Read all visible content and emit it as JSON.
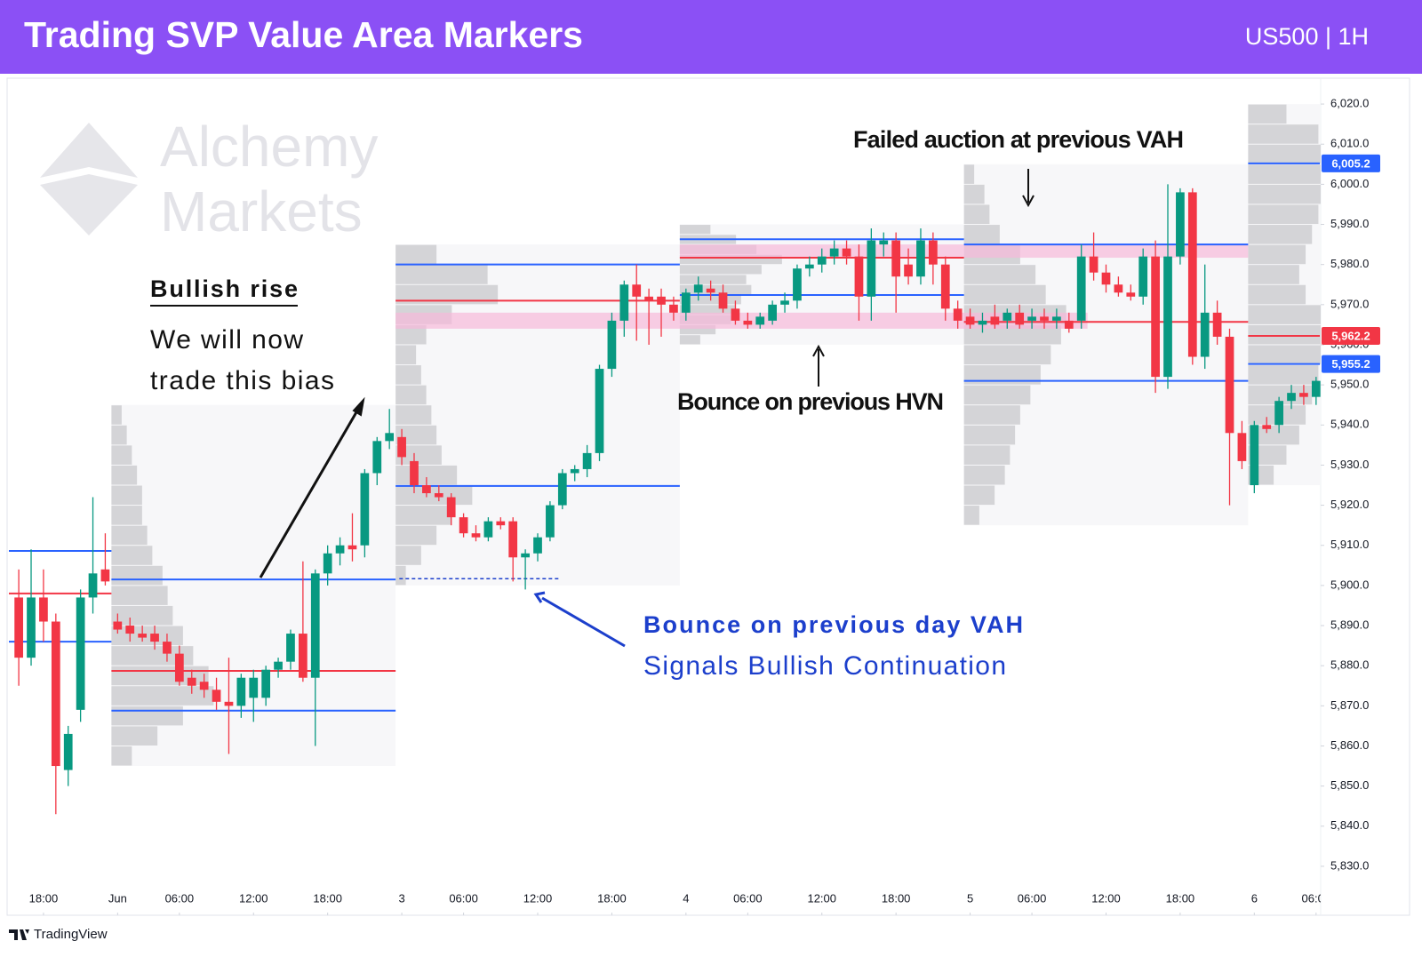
{
  "header": {
    "title": "Trading SVP Value Area Markers",
    "symbol": "US500 | 1H"
  },
  "watermark": [
    "Alchemy",
    "Markets"
  ],
  "footer": "TradingView",
  "chart_data": {
    "type": "candlestick",
    "up_color": "#089981",
    "down_color": "#f23645",
    "vah_color": "#2962ff",
    "poc_color": "#f23645",
    "val_color": "#2962ff",
    "zone_color": "#f7b9da",
    "grid": false,
    "xlim": [
      -2.8,
      103.3
    ],
    "ylim": [
      5817.8,
      6026
    ],
    "xticks": [
      {
        "value": 0,
        "label": "18:00"
      },
      {
        "value": 6,
        "label": "Jun"
      },
      {
        "value": 11,
        "label": "06:00"
      },
      {
        "value": 17,
        "label": "12:00"
      },
      {
        "value": 23,
        "label": "18:00"
      },
      {
        "value": 29,
        "label": "3"
      },
      {
        "value": 34,
        "label": "06:00"
      },
      {
        "value": 40,
        "label": "12:00"
      },
      {
        "value": 46,
        "label": "18:00"
      },
      {
        "value": 52,
        "label": "4"
      },
      {
        "value": 57,
        "label": "06:00"
      },
      {
        "value": 63,
        "label": "12:00"
      },
      {
        "value": 69,
        "label": "18:00"
      },
      {
        "value": 75,
        "label": "5"
      },
      {
        "value": 80,
        "label": "06:00"
      },
      {
        "value": 86,
        "label": "12:00"
      },
      {
        "value": 92,
        "label": "18:00"
      },
      {
        "value": 98,
        "label": "6"
      },
      {
        "value": 103,
        "label": "06:00"
      }
    ],
    "yticks": [
      {
        "value": 6020,
        "label": "6,020.0"
      },
      {
        "value": 6010,
        "label": "6,010.0"
      },
      {
        "value": 6000,
        "label": "6,000.0"
      },
      {
        "value": 5990,
        "label": "5,990.0"
      },
      {
        "value": 5980,
        "label": "5,980.0"
      },
      {
        "value": 5970,
        "label": "5,970.0"
      },
      {
        "value": 5960,
        "label": "5,960.0"
      },
      {
        "value": 5950,
        "label": "5,950.0"
      },
      {
        "value": 5940,
        "label": "5,940.0"
      },
      {
        "value": 5930,
        "label": "5,930.0"
      },
      {
        "value": 5920,
        "label": "5,920.0"
      },
      {
        "value": 5910,
        "label": "5,910.0"
      },
      {
        "value": 5900,
        "label": "5,900.0"
      },
      {
        "value": 5890,
        "label": "5,890.0"
      },
      {
        "value": 5880,
        "label": "5,880.0"
      },
      {
        "value": 5870,
        "label": "5,870.0"
      },
      {
        "value": 5860,
        "label": "5,860.0"
      },
      {
        "value": 5850,
        "label": "5,850.0"
      },
      {
        "value": 5840,
        "label": "5,840.0"
      },
      {
        "value": 5830,
        "label": "5,830.0"
      }
    ],
    "x": [
      -2,
      -1,
      0,
      1,
      2,
      3,
      4,
      5,
      6,
      7,
      8,
      9,
      10,
      11,
      12,
      13,
      14,
      15,
      16,
      17,
      18,
      19,
      20,
      21,
      22,
      23,
      24,
      25,
      26,
      27,
      28,
      29,
      30,
      31,
      32,
      33,
      34,
      35,
      36,
      37,
      38,
      39,
      40,
      41,
      42,
      43,
      44,
      45,
      46,
      47,
      48,
      49,
      50,
      51,
      52,
      53,
      54,
      55,
      56,
      57,
      58,
      59,
      60,
      61,
      62,
      63,
      64,
      65,
      66,
      67,
      68,
      69,
      70,
      71,
      72,
      73,
      74,
      75,
      76,
      77,
      78,
      79,
      80,
      81,
      82,
      83,
      84,
      85,
      86,
      87,
      88,
      89,
      90,
      91,
      92,
      93,
      94,
      95,
      96,
      97,
      98,
      99,
      100,
      101,
      102,
      103
    ],
    "open": [
      5897,
      5882,
      5897,
      5891,
      5854,
      5869,
      5897,
      5904,
      5891,
      5890,
      5888,
      5888,
      5886,
      5883,
      5877,
      5876,
      5874,
      5871,
      5870,
      5872,
      5872,
      5879,
      5881,
      5888,
      5877,
      5903,
      5908,
      5910,
      5910,
      5928,
      5936,
      5937,
      5931,
      5925,
      5923,
      5922,
      5917,
      5913,
      5912,
      5916,
      5916,
      5907,
      5908,
      5912,
      5920,
      5928,
      5929,
      5933,
      5954,
      5966,
      5975,
      5972,
      5972,
      5970,
      5968,
      5973,
      5974,
      5973,
      5969,
      5966,
      5965,
      5966,
      5970,
      5971,
      5979,
      5980,
      5982,
      5984,
      5982,
      5972,
      5985,
      5986,
      5980,
      5977,
      5986,
      5980,
      5969,
      5967,
      5965,
      5967,
      5966,
      5968,
      5966,
      5967,
      5966,
      5966,
      5966,
      5982,
      5978,
      5975,
      5973,
      5972,
      5982,
      5952,
      5982,
      5998,
      5957,
      5968,
      5962,
      5938,
      5925,
      5940,
      5940,
      5946,
      5948,
      5947
    ],
    "high": [
      5904,
      5909,
      5904,
      5893,
      5865,
      5899,
      5922,
      5913,
      5893,
      5892,
      5890,
      5890,
      5888,
      5885,
      5879,
      5878,
      5877,
      5882,
      5878,
      5879,
      5880,
      5882,
      5889,
      5906,
      5904,
      5910,
      5912,
      5918,
      5929,
      5937,
      5944,
      5939,
      5933,
      5927,
      5925,
      5923,
      5918,
      5915,
      5917,
      5917,
      5917,
      5909,
      5913,
      5921,
      5929,
      5930,
      5935,
      5955,
      5968,
      5976,
      5980,
      5974,
      5974,
      5972,
      5974,
      5977,
      5976,
      5975,
      5971,
      5968,
      5968,
      5971,
      5973,
      5980,
      5982,
      5984,
      5986,
      5986,
      5985,
      5989,
      5988,
      5988,
      5984,
      5989,
      5988,
      5982,
      5971,
      5969,
      5968,
      5970,
      5969,
      5970,
      5969,
      5969,
      5969,
      5968,
      5985,
      5988,
      5980,
      5977,
      5975,
      5984,
      5986,
      6000,
      5999,
      5999,
      5980,
      5971,
      5964,
      5941,
      5941,
      5942,
      5947,
      5950,
      5950,
      5952
    ],
    "low": [
      5875,
      5880,
      5886,
      5843,
      5850,
      5866,
      5893,
      5900,
      5888,
      5886,
      5886,
      5884,
      5881,
      5875,
      5873,
      5872,
      5869,
      5858,
      5867,
      5866,
      5870,
      5877,
      5879,
      5876,
      5860,
      5900,
      5905,
      5906,
      5907,
      5925,
      5934,
      5930,
      5923,
      5922,
      5921,
      5915,
      5912,
      5911,
      5911,
      5914,
      5901,
      5899,
      5906,
      5911,
      5919,
      5926,
      5927,
      5931,
      5952,
      5962,
      5961,
      5960,
      5962,
      5966,
      5966,
      5971,
      5971,
      5968,
      5965,
      5964,
      5964,
      5965,
      5968,
      5969,
      5977,
      5978,
      5980,
      5980,
      5966,
      5966,
      5982,
      5968,
      5975,
      5975,
      5975,
      5966,
      5964,
      5964,
      5963,
      5964,
      5964,
      5964,
      5964,
      5964,
      5964,
      5963,
      5964,
      5976,
      5973,
      5972,
      5971,
      5970,
      5948,
      5949,
      5980,
      5955,
      5954,
      5960,
      5920,
      5929,
      5923,
      5938,
      5938,
      5944,
      5945,
      5945
    ],
    "close": [
      5882,
      5897,
      5891,
      5855,
      5863,
      5897,
      5903,
      5901,
      5889,
      5888,
      5887,
      5886,
      5883,
      5876,
      5875,
      5874,
      5871,
      5870,
      5877,
      5877,
      5879,
      5881,
      5888,
      5877,
      5903,
      5908,
      5910,
      5909,
      5928,
      5936,
      5938,
      5932,
      5925,
      5923,
      5922,
      5917,
      5913,
      5912,
      5916,
      5915,
      5907,
      5908,
      5912,
      5920,
      5928,
      5929,
      5933,
      5954,
      5966,
      5975,
      5972,
      5971,
      5970,
      5968,
      5973,
      5975,
      5973,
      5969,
      5966,
      5965,
      5967,
      5970,
      5971,
      5979,
      5980,
      5982,
      5984,
      5982,
      5972,
      5986,
      5986,
      5977,
      5977,
      5986,
      5980,
      5969,
      5966,
      5965,
      5966,
      5965,
      5968,
      5965,
      5967,
      5966,
      5967,
      5964,
      5982,
      5978,
      5975,
      5973,
      5972,
      5982,
      5952,
      5982,
      5998,
      5957,
      5968,
      5962,
      5938,
      5931,
      5940,
      5939,
      5946,
      5948,
      5947,
      5951
    ],
    "sessions": [
      {
        "start": -2.8,
        "end": 5.5,
        "vah": 5908.6,
        "poc": 5898,
        "val": 5886
      },
      {
        "start": 5.5,
        "end": 28.5,
        "vah": 5901.5,
        "poc": 5878.7,
        "val": 5868.8,
        "bins": [
          5855,
          5860,
          5865,
          5870,
          5875,
          5880,
          5885,
          5890,
          5895,
          5900,
          5905,
          5910,
          5915,
          5920,
          5925,
          5930,
          5935,
          5940,
          5945
        ],
        "volumes": [
          20,
          45,
          70,
          100,
          95,
          80,
          70,
          60,
          55,
          50,
          40,
          35,
          30,
          30,
          25,
          20,
          15,
          10
        ]
      },
      {
        "start": 28.5,
        "end": 51.5,
        "vah": 5980,
        "poc": 5971,
        "val": 5924.8,
        "bins": [
          5900,
          5905,
          5910,
          5915,
          5920,
          5925,
          5930,
          5935,
          5940,
          5945,
          5950,
          5955,
          5960,
          5965,
          5970,
          5975,
          5980,
          5985
        ],
        "volumes": [
          10,
          25,
          40,
          55,
          75,
          60,
          45,
          40,
          35,
          30,
          25,
          20,
          30,
          55,
          100,
          90,
          40
        ]
      },
      {
        "start": 51.5,
        "end": 74.5,
        "vah": 5986.3,
        "poc": 5981.7,
        "val": 5972.4,
        "bins": [
          5960,
          5962.5,
          5965,
          5967.5,
          5970,
          5972.5,
          5975,
          5977.5,
          5980,
          5982.5,
          5985,
          5987.5,
          5990
        ],
        "volumes": [
          20,
          35,
          50,
          55,
          60,
          70,
          65,
          80,
          100,
          75,
          55,
          30
        ]
      },
      {
        "start": 74.5,
        "end": 97.5,
        "vah": 5985,
        "poc": 5965.7,
        "val": 5951,
        "bins": [
          5915,
          5920,
          5925,
          5930,
          5935,
          5940,
          5945,
          5950,
          5955,
          5960,
          5965,
          5970,
          5975,
          5980,
          5985,
          5990,
          5995,
          6000,
          6005
        ],
        "volumes": [
          15,
          30,
          40,
          45,
          50,
          55,
          65,
          75,
          85,
          95,
          100,
          80,
          70,
          55,
          35,
          25,
          20,
          10
        ]
      },
      {
        "start": 97.5,
        "end": 103.3,
        "vah": 6005.2,
        "poc": 5962.2,
        "val": 5955.2,
        "vah_label": "6,005.2",
        "poc_label": "5,962.2",
        "val_label": "5,955.2",
        "bins": [
          5925,
          5930,
          5935,
          5940,
          5945,
          5950,
          5955,
          5960,
          5965,
          5970,
          5975,
          5980,
          5985,
          5990,
          5995,
          6000,
          6005,
          6010,
          6015,
          6020
        ],
        "volumes": [
          20,
          30,
          40,
          45,
          50,
          55,
          70,
          80,
          60,
          45,
          40,
          45,
          50,
          55,
          60,
          70,
          75,
          55,
          30
        ]
      }
    ],
    "zones": [
      {
        "low": 5964,
        "high": 5968,
        "start": 28.5,
        "end": 84.5
      },
      {
        "low": 5981.7,
        "high": 5985,
        "start": 51.5,
        "end": 97.5
      }
    ],
    "levels": [
      {
        "value": 5901.7,
        "start": 28.8,
        "end": 41.8
      }
    ],
    "annotations": [
      "Failed auction at previous VAH",
      "Bullish rise",
      "We will now",
      "trade this bias",
      "Bounce on previous HVN",
      "Bounce on previous day VAH",
      "Signals Bullish Continuation"
    ]
  }
}
